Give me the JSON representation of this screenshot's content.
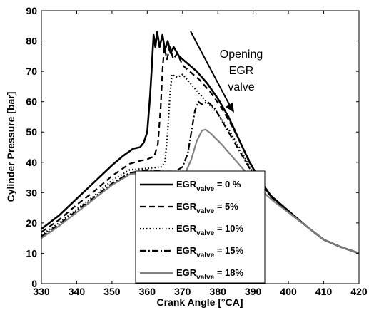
{
  "chart_data": {
    "type": "line",
    "title": "",
    "xlabel": "Crank Angle [°CA]",
    "ylabel": "Cylinder Pressure [bar]",
    "xlim": [
      330,
      420
    ],
    "ylim": [
      0,
      90
    ],
    "xticks": [
      "330",
      "340",
      "350",
      "360",
      "370",
      "380",
      "390",
      "400",
      "410",
      "420"
    ],
    "yticks": [
      "0",
      "10",
      "20",
      "30",
      "40",
      "50",
      "60",
      "70",
      "80",
      "90"
    ],
    "grid": false,
    "legend_position": "center-bottom",
    "annotation": [
      "Opening",
      "EGR",
      "valve"
    ],
    "series": [
      {
        "name": "EGR",
        "subscript": "valve",
        "value_label": " = 0 %",
        "color": "#000000",
        "dash": "solid",
        "points": [
          [
            330,
            18
          ],
          [
            335,
            22.5
          ],
          [
            340,
            28
          ],
          [
            345,
            33.5
          ],
          [
            350,
            39
          ],
          [
            353,
            42
          ],
          [
            356,
            44.5
          ],
          [
            358,
            45
          ],
          [
            359,
            46.5
          ],
          [
            360,
            50
          ],
          [
            360.8,
            62
          ],
          [
            361.3,
            72
          ],
          [
            361.8,
            82
          ],
          [
            362.3,
            78
          ],
          [
            362.8,
            83
          ],
          [
            363.5,
            78
          ],
          [
            364.3,
            82
          ],
          [
            365,
            77
          ],
          [
            365.8,
            80
          ],
          [
            366.6,
            76
          ],
          [
            367.5,
            78
          ],
          [
            369,
            75
          ],
          [
            371,
            73
          ],
          [
            374,
            70
          ],
          [
            377,
            66
          ],
          [
            380,
            61
          ],
          [
            383,
            55
          ],
          [
            386,
            47.5
          ],
          [
            389,
            40
          ],
          [
            392,
            34
          ],
          [
            395,
            29
          ],
          [
            400,
            24
          ],
          [
            405,
            19
          ],
          [
            410,
            14.5
          ],
          [
            415,
            12
          ],
          [
            420,
            10
          ]
        ]
      },
      {
        "name": "EGR",
        "subscript": "valve",
        "value_label": " = 5%",
        "color": "#000000",
        "dash": "8,5",
        "points": [
          [
            330,
            17
          ],
          [
            335,
            21
          ],
          [
            340,
            26
          ],
          [
            345,
            30.5
          ],
          [
            350,
            35.5
          ],
          [
            355,
            39.5
          ],
          [
            358,
            40.5
          ],
          [
            360,
            41
          ],
          [
            362,
            42
          ],
          [
            363,
            46
          ],
          [
            363.8,
            58
          ],
          [
            364.3,
            70
          ],
          [
            364.8,
            78
          ],
          [
            365.6,
            74
          ],
          [
            366.4,
            78
          ],
          [
            367.4,
            74
          ],
          [
            368.5,
            76
          ],
          [
            370,
            72
          ],
          [
            372,
            70
          ],
          [
            375,
            67
          ],
          [
            378,
            63
          ],
          [
            381,
            58
          ],
          [
            384,
            52
          ],
          [
            387,
            45
          ],
          [
            390,
            38
          ],
          [
            393,
            32
          ],
          [
            396,
            27.5
          ],
          [
            400,
            23.5
          ],
          [
            405,
            19
          ],
          [
            410,
            14.5
          ],
          [
            415,
            12
          ],
          [
            420,
            10
          ]
        ]
      },
      {
        "name": "EGR",
        "subscript": "valve",
        "value_label": " = 10%",
        "color": "#000000",
        "dash": "1.5,3",
        "points": [
          [
            330,
            16
          ],
          [
            335,
            20
          ],
          [
            340,
            24.5
          ],
          [
            345,
            29
          ],
          [
            350,
            34
          ],
          [
            355,
            37.5
          ],
          [
            360,
            38
          ],
          [
            364,
            38.5
          ],
          [
            365,
            40
          ],
          [
            365.8,
            50
          ],
          [
            366.4,
            62
          ],
          [
            367,
            69
          ],
          [
            368.5,
            68
          ],
          [
            370,
            69
          ],
          [
            371.5,
            67
          ],
          [
            373,
            65
          ],
          [
            376,
            61
          ],
          [
            380,
            56
          ],
          [
            383,
            51
          ],
          [
            386,
            45
          ],
          [
            389,
            38.5
          ],
          [
            392,
            33
          ],
          [
            396,
            27.5
          ],
          [
            400,
            23.5
          ],
          [
            405,
            19
          ],
          [
            410,
            14.5
          ],
          [
            415,
            12
          ],
          [
            420,
            10
          ]
        ]
      },
      {
        "name": "EGR",
        "subscript": "valve",
        "value_label": " = 15%",
        "color": "#000000",
        "dash": "9,3,2,3",
        "points": [
          [
            330,
            15.5
          ],
          [
            335,
            19.5
          ],
          [
            340,
            24
          ],
          [
            345,
            28.5
          ],
          [
            350,
            33
          ],
          [
            355,
            36.5
          ],
          [
            360,
            37.5
          ],
          [
            365,
            37
          ],
          [
            368,
            37
          ],
          [
            370,
            38.5
          ],
          [
            371.5,
            43
          ],
          [
            372.5,
            50
          ],
          [
            373.5,
            57
          ],
          [
            374.5,
            60
          ],
          [
            375.5,
            59
          ],
          [
            377,
            60
          ],
          [
            379,
            58
          ],
          [
            381,
            54
          ],
          [
            383,
            50
          ],
          [
            386,
            44
          ],
          [
            389,
            38
          ],
          [
            392,
            33
          ],
          [
            396,
            27.5
          ],
          [
            400,
            23.5
          ],
          [
            405,
            19
          ],
          [
            410,
            14.5
          ],
          [
            415,
            12
          ],
          [
            420,
            10
          ]
        ]
      },
      {
        "name": "EGR",
        "subscript": "valve",
        "value_label": " = 18%",
        "color": "#808080",
        "dash": "solid",
        "points": [
          [
            330,
            15
          ],
          [
            335,
            19
          ],
          [
            340,
            23.5
          ],
          [
            345,
            28
          ],
          [
            350,
            32.5
          ],
          [
            355,
            36
          ],
          [
            360,
            37
          ],
          [
            365,
            37
          ],
          [
            369,
            36.5
          ],
          [
            371,
            37
          ],
          [
            372.5,
            41
          ],
          [
            374,
            47
          ],
          [
            375.5,
            50.5
          ],
          [
            376.5,
            50.8
          ],
          [
            378,
            49.5
          ],
          [
            381,
            46
          ],
          [
            384,
            42
          ],
          [
            387,
            38
          ],
          [
            390,
            34
          ],
          [
            393,
            30
          ],
          [
            396,
            27
          ],
          [
            400,
            23.5
          ],
          [
            405,
            19
          ],
          [
            410,
            14.5
          ],
          [
            415,
            12
          ],
          [
            420,
            10
          ]
        ]
      }
    ]
  }
}
